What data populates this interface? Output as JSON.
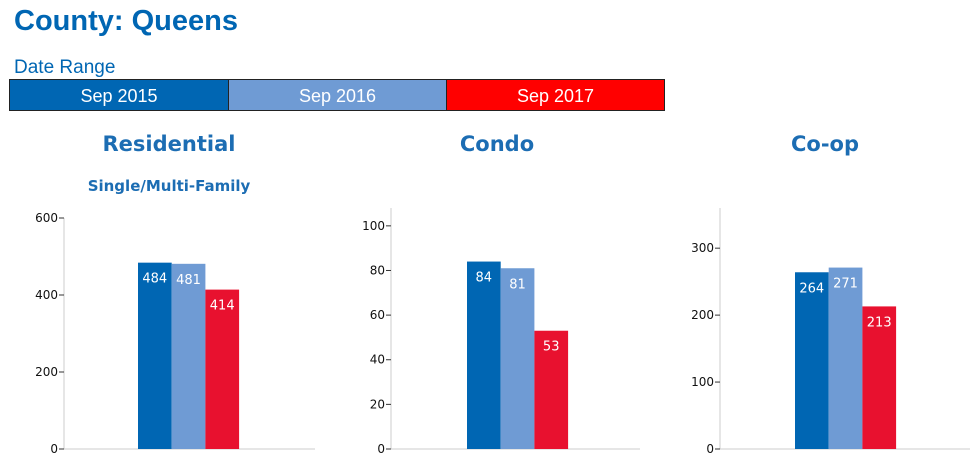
{
  "header": {
    "title": "County: Queens",
    "date_range_label": "Date Range"
  },
  "legend": [
    {
      "label": "Sep 2015",
      "color": "#0066b3"
    },
    {
      "label": "Sep 2016",
      "color": "#6f9bd4"
    },
    {
      "label": "Sep 2017",
      "color": "#ff0000"
    }
  ],
  "chart_data": [
    {
      "type": "bar",
      "title": "Residential",
      "subtitle": "Single/Multi-Family",
      "categories": [
        "Sep 2015",
        "Sep 2016",
        "Sep 2017"
      ],
      "values": [
        484,
        481,
        414
      ],
      "colors": [
        "#0066b3",
        "#6f9bd4",
        "#e8112f"
      ],
      "ylim": [
        0,
        600
      ],
      "yticks": [
        0,
        200,
        400,
        600
      ],
      "grid": false
    },
    {
      "type": "bar",
      "title": "Condo",
      "subtitle": "",
      "categories": [
        "Sep 2015",
        "Sep 2016",
        "Sep 2017"
      ],
      "values": [
        84,
        81,
        53
      ],
      "colors": [
        "#0066b3",
        "#6f9bd4",
        "#e8112f"
      ],
      "ylim": [
        0,
        108
      ],
      "yticks": [
        0,
        20,
        40,
        60,
        80,
        100
      ],
      "grid": false
    },
    {
      "type": "bar",
      "title": "Co-op",
      "subtitle": "",
      "categories": [
        "Sep 2015",
        "Sep 2016",
        "Sep 2017"
      ],
      "values": [
        264,
        271,
        213
      ],
      "colors": [
        "#0066b3",
        "#6f9bd4",
        "#e8112f"
      ],
      "ylim": [
        0,
        360
      ],
      "yticks": [
        0,
        100,
        200,
        300
      ],
      "grid": false
    }
  ]
}
